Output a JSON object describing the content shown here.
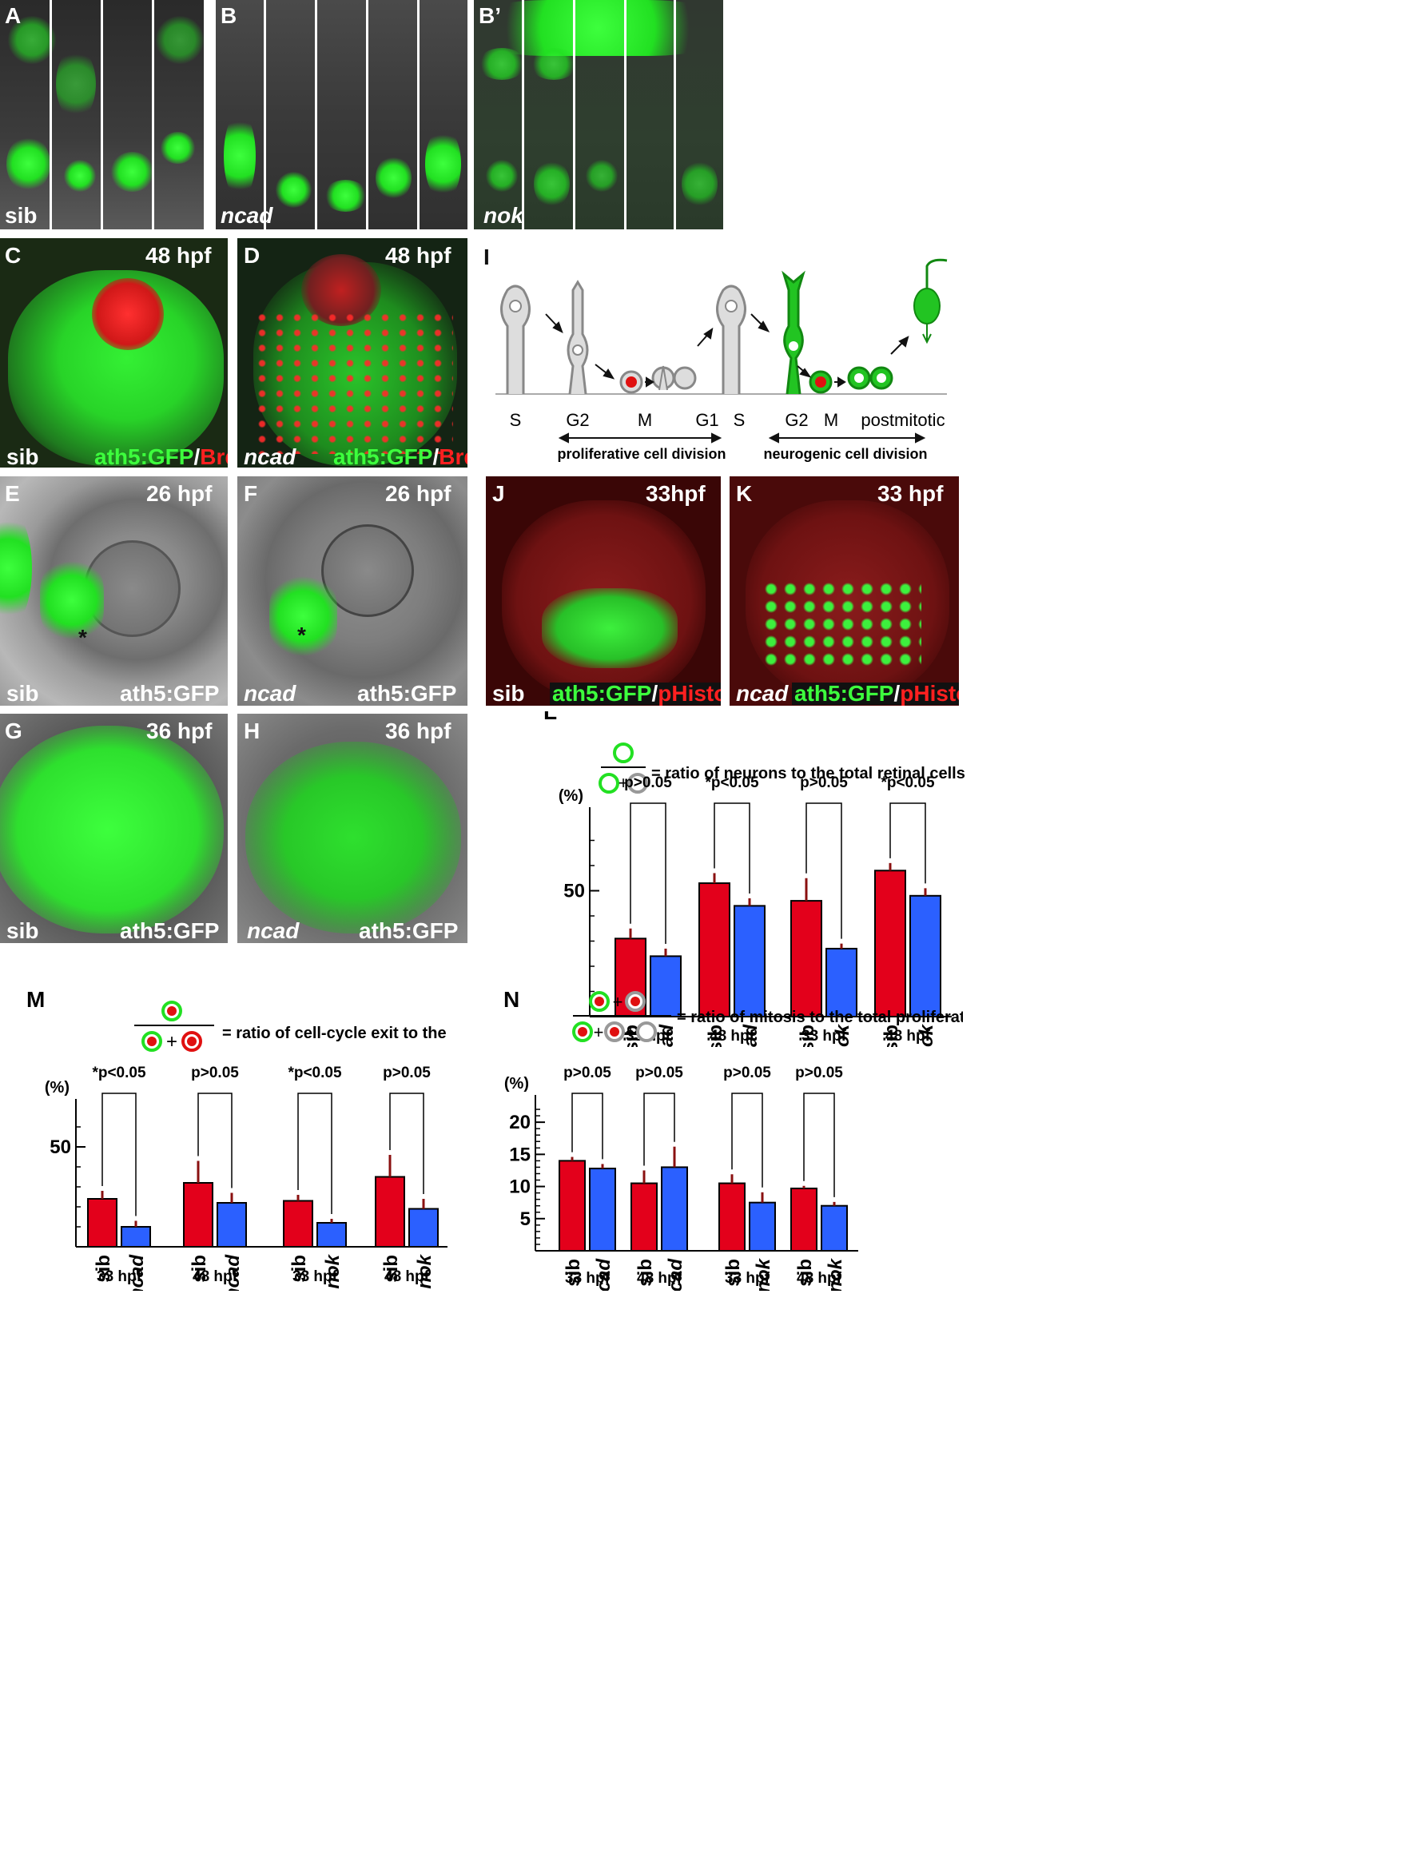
{
  "labels": {
    "A": "A",
    "B": "B",
    "Bp": "B’",
    "C": "C",
    "D": "D",
    "E": "E",
    "F": "F",
    "G": "G",
    "H": "H",
    "I": "I",
    "J": "J",
    "K": "K",
    "L": "L",
    "M": "M",
    "N": "N"
  },
  "tags": {
    "sib": "sib",
    "ncad": "ncad",
    "nok": "nok",
    "h48": "48 hpf",
    "h26": "26 hpf",
    "h36": "36 hpf",
    "h33j": "33hpf",
    "h33k": "33 hpf",
    "ath5": "ath5:GFP",
    "slash": "/",
    "brdu": "BrdU",
    "phistone": "pHistone",
    "asterisk": "*"
  },
  "diagram": {
    "phases": [
      "S",
      "G2",
      "M",
      "G1",
      "S",
      "G2",
      "M",
      "postmitotic"
    ],
    "proliferative": "proliferative cell division",
    "neurogenic": "neurogenic cell division"
  },
  "colors": {
    "sib": "#e3001b",
    "mutant": "#2b60ff",
    "gfp": "#22e022",
    "red": "#e01010"
  },
  "chart_data": [
    {
      "id": "L",
      "type": "bar",
      "formula_label": "= ratio of neurons to the total retinal cells",
      "ylabel": "(%)",
      "yticks": [
        "50"
      ],
      "groups": [
        {
          "time": "33 hpf",
          "sib": "sib",
          "mut": "ncad",
          "sib_value": 31,
          "mut_value": 24,
          "sib_err": 4,
          "mut_err": 3,
          "p": "p>0.05"
        },
        {
          "time": "48 hpf",
          "sib": "sib",
          "mut": "ncad",
          "sib_value": 53,
          "mut_value": 44,
          "sib_err": 4,
          "mut_err": 3,
          "p": "*p<0.05"
        },
        {
          "time": "33 hpf",
          "sib": "sib",
          "mut": "nok",
          "sib_value": 46,
          "mut_value": 27,
          "sib_err": 9,
          "mut_err": 2,
          "p": "p>0.05"
        },
        {
          "time": "48 hpf",
          "sib": "sib",
          "mut": "nok",
          "sib_value": 58,
          "mut_value": 48,
          "sib_err": 3,
          "mut_err": 3,
          "p": "*p<0.05"
        }
      ]
    },
    {
      "id": "M",
      "type": "bar",
      "formula_label": "= ratio of cell-cycle exit to the total mitosis",
      "ylabel": "(%)",
      "yticks": [
        "50"
      ],
      "groups": [
        {
          "time": "33 hpf",
          "sib": "sib",
          "mut": "ncad",
          "sib_value": 24,
          "mut_value": 10,
          "sib_err": 4,
          "mut_err": 3,
          "p": "*p<0.05"
        },
        {
          "time": "48 hpf",
          "sib": "sib",
          "mut": "ncad",
          "sib_value": 32,
          "mut_value": 22,
          "sib_err": 11,
          "mut_err": 5,
          "p": "p>0.05"
        },
        {
          "time": "33 hpf",
          "sib": "sib",
          "mut": "nok",
          "sib_value": 23,
          "mut_value": 12,
          "sib_err": 3,
          "mut_err": 2,
          "p": "*p<0.05"
        },
        {
          "time": "48 hpf",
          "sib": "sib",
          "mut": "nok",
          "sib_value": 35,
          "mut_value": 19,
          "sib_err": 11,
          "mut_err": 5,
          "p": "p>0.05"
        }
      ]
    },
    {
      "id": "N",
      "type": "bar",
      "formula_label": "= ratio of mitosis to the total proliferating cells",
      "ylabel": "(%)",
      "yticks": [
        "5",
        "10",
        "15",
        "20"
      ],
      "groups": [
        {
          "time": "33 hpf",
          "sib": "sib",
          "mut": "ncad",
          "sib_value": 14,
          "mut_value": 12.8,
          "sib_err": 0.6,
          "mut_err": 0.7,
          "p": "p>0.05"
        },
        {
          "time": "48 hpf",
          "sib": "sib",
          "mut": "ncad",
          "sib_value": 10.5,
          "mut_value": 13,
          "sib_err": 2,
          "mut_err": 3.2,
          "p": "p>0.05"
        },
        {
          "time": "33 hpf",
          "sib": "sib",
          "mut": "nok",
          "sib_value": 10.5,
          "mut_value": 7.5,
          "sib_err": 1.4,
          "mut_err": 1.6,
          "p": "p>0.05"
        },
        {
          "time": "48 hpf",
          "sib": "sib",
          "mut": "nok",
          "sib_value": 9.7,
          "mut_value": 7,
          "sib_err": 0.4,
          "mut_err": 0.6,
          "p": "p>0.05"
        }
      ]
    }
  ]
}
